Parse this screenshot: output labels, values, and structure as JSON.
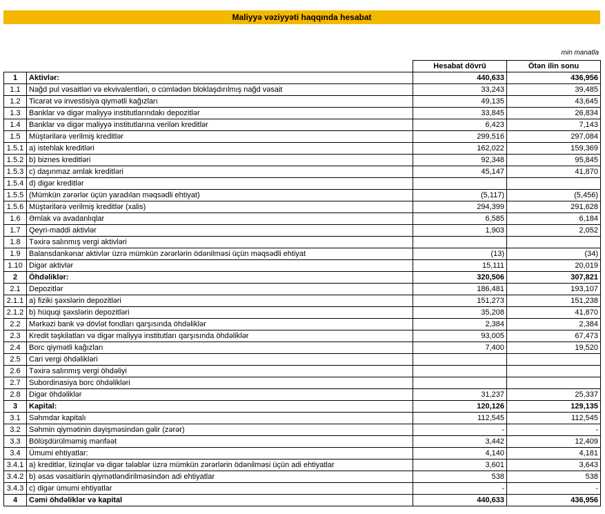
{
  "header": {
    "title": "Maliyyə vəziyyəti haqqında hesabat",
    "unit": "min manatla"
  },
  "table": {
    "columns": [
      "Hesabat dövrü",
      "Ötən ilin sonu"
    ],
    "rows": [
      {
        "no": "1",
        "label": "Aktivlər:",
        "current": "440,633",
        "previous": "436,956"
      },
      {
        "no": "1.1",
        "label": "Nağd pul vəsaitləri və ekvivalentləri, o cümlədən bloklaşdırılmış nağd vəsait",
        "current": "33,243",
        "previous": "39,485"
      },
      {
        "no": "1.2",
        "label": "Ticarət və investisiya qiymətli kağızları",
        "current": "49,135",
        "previous": "43,645"
      },
      {
        "no": "1.3",
        "label": "Banklar və digər maliyyə institutlarındakı depozitlər",
        "current": "33,845",
        "previous": "26,834"
      },
      {
        "no": "1.4",
        "label": "Banklar və digər maliyyə institutlarına verilən kreditlər",
        "current": "6,423",
        "previous": "7,143"
      },
      {
        "no": "1.5",
        "label": "Müştərilərə verilmiş kreditlər",
        "current": "299,516",
        "previous": "297,084"
      },
      {
        "no": "1.5.1",
        "label": "a) istehlak kreditləri",
        "current": "162,022",
        "previous": "159,369"
      },
      {
        "no": "1.5.2",
        "label": "b) biznes kreditləri",
        "current": "92,348",
        "previous": "95,845"
      },
      {
        "no": "1.5.3",
        "label": "c) daşınmaz əmlak kreditləri",
        "current": "45,147",
        "previous": "41,870"
      },
      {
        "no": "1.5.4",
        "label": "d) digər kreditlər",
        "current": null,
        "previous": null
      },
      {
        "no": "1.5.5",
        "label": "(Mümkün zərərlər üçün yaradılan məqsədli ehtiyat)",
        "current": "(5,117)",
        "previous": "(5,456)"
      },
      {
        "no": "1.5.6",
        "label": "Müştərilərə verilmiş kreditlər (xalis)",
        "current": "294,399",
        "previous": "291,628"
      },
      {
        "no": "1.6",
        "label": "Əmlak və avadanlıqlar",
        "current": "6,585",
        "previous": "6,184"
      },
      {
        "no": "1.7",
        "label": "Qeyri-maddi aktivlər",
        "current": "1,903",
        "previous": "2,052"
      },
      {
        "no": "1.8",
        "label": "Təxirə salınmış vergi aktivləri",
        "current": null,
        "previous": null
      },
      {
        "no": "1.9",
        "label": "Balansdankənar aktivlər üzrə mümkün zərərlərin ödənilməsi üçün məqsədli ehtiyat",
        "current": "(13)",
        "previous": "(34)"
      },
      {
        "no": "1.10",
        "label": "Digər aktivlər",
        "current": "15,111",
        "previous": "20,019"
      },
      {
        "no": "2",
        "label": "Öhdəliklər:",
        "current": "320,506",
        "previous": "307,821"
      },
      {
        "no": "2.1",
        "label": "Depozitlər",
        "current": "186,481",
        "previous": "193,107"
      },
      {
        "no": "2.1.1",
        "label": "a) fiziki şəxslərin depozitləri",
        "current": "151,273",
        "previous": "151,238"
      },
      {
        "no": "2.1.2",
        "label": "b) hüquqi şəxslərin depozitləri",
        "current": "35,208",
        "previous": "41,870"
      },
      {
        "no": "2.2",
        "label": "Mərkəzi bank və dövlət fondları qarşısında öhdəliklər",
        "current": "2,384",
        "previous": "2,384"
      },
      {
        "no": "2.3",
        "label": "Kredit təşkilatları və digər maliyyə institutları qarşısında öhdəliklər",
        "current": "93,005",
        "previous": "67,473"
      },
      {
        "no": "2.4",
        "label": "Borc qiymətli kağızları",
        "current": "7,400",
        "previous": "19,520"
      },
      {
        "no": "2.5",
        "label": "Cari vergi öhdəlikləri",
        "current": null,
        "previous": null
      },
      {
        "no": "2.6",
        "label": "Təxirə salınmış vergi öhdəliyi",
        "current": null,
        "previous": null
      },
      {
        "no": "2.7",
        "label": "Subordinasiya borc öhdəlikləri",
        "current": null,
        "previous": null
      },
      {
        "no": "2.8",
        "label": "Digər öhdəliklər",
        "current": "31,237",
        "previous": "25,337"
      },
      {
        "no": "3",
        "label": "Kapital:",
        "current": "120,126",
        "previous": "129,135"
      },
      {
        "no": "3.1",
        "label": "Səhmdar kapitalı",
        "current": "112,545",
        "previous": "112,545"
      },
      {
        "no": "3.2",
        "label": "Səhmin qiymətinin dəyişməsindən gəlir (zərər)",
        "current": "-",
        "previous": "-"
      },
      {
        "no": "3.3",
        "label": "Bölüşdürülməmiş mənfəət",
        "current": "3,442",
        "previous": "12,409"
      },
      {
        "no": "3.4",
        "label": "Ümumi ehtiyatlar:",
        "current": "4,140",
        "previous": "4,181"
      },
      {
        "no": "3.4.1",
        "label": "a) kreditlər, lizinqlər və digər tələblər üzrə mümkün zərərlərin ödənilməsi üçün adi ehtiyatlar",
        "current": "3,601",
        "previous": "3,643"
      },
      {
        "no": "3.4.2",
        "label": "b) əsas vəsaitlərin qiymətləndirilməsindən adi ehtiyatlar",
        "current": "538",
        "previous": "538"
      },
      {
        "no": "3.4.3",
        "label": "c) digər ümumi ehtiyatlar",
        "current": "-",
        "previous": "-"
      },
      {
        "no": "4",
        "label": "Cəmi öhdəliklər və kapital",
        "current": "440,633",
        "previous": "436,956"
      }
    ]
  }
}
